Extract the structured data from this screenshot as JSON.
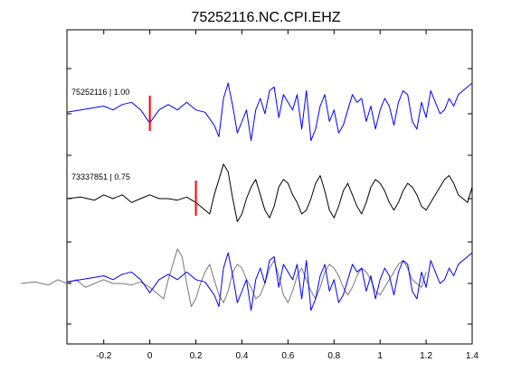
{
  "title": "75252116.NC.CPI.EHZ",
  "chart_data": {
    "type": "line",
    "title": "75252116.NC.CPI.EHZ",
    "xlabel": "",
    "ylabel": "",
    "xlim": [
      -0.36,
      1.4
    ],
    "x_ticks": [
      "-0.2",
      "0",
      "0.2",
      "0.4",
      "0.6",
      "0.8",
      "1",
      "1.2",
      "1.4"
    ],
    "x_tick_values": [
      -0.2,
      0,
      0.2,
      0.4,
      0.6,
      0.8,
      1.0,
      1.2,
      1.4
    ],
    "grid": false,
    "legend": "none",
    "traces": [
      {
        "label": "75252116 | 1.00",
        "color": "#0000ff",
        "pick_time": 0.0,
        "pick_color": "#ff0000",
        "x": [
          -0.36,
          -0.3,
          -0.24,
          -0.2,
          -0.16,
          -0.12,
          -0.08,
          -0.04,
          0,
          0.04,
          0.08,
          0.12,
          0.16,
          0.2,
          0.24,
          0.28,
          0.3,
          0.32,
          0.34,
          0.36,
          0.38,
          0.4,
          0.42,
          0.44,
          0.46,
          0.48,
          0.5,
          0.52,
          0.54,
          0.56,
          0.58,
          0.6,
          0.62,
          0.64,
          0.66,
          0.68,
          0.7,
          0.72,
          0.74,
          0.76,
          0.78,
          0.8,
          0.82,
          0.84,
          0.86,
          0.88,
          0.9,
          0.92,
          0.94,
          0.96,
          0.98,
          1.0,
          1.02,
          1.04,
          1.06,
          1.08,
          1.1,
          1.12,
          1.14,
          1.16,
          1.18,
          1.2,
          1.22,
          1.24,
          1.26,
          1.28,
          1.3,
          1.32,
          1.34,
          1.36,
          1.38,
          1.4
        ],
        "y": [
          0.02,
          0.05,
          0.08,
          0.1,
          0.05,
          0.12,
          0.15,
          0.05,
          -0.12,
          0.05,
          0.12,
          0.05,
          0.15,
          0.05,
          0.02,
          -0.15,
          -0.3,
          0.2,
          0.4,
          0.1,
          -0.25,
          -0.1,
          0.05,
          -0.35,
          0.05,
          0.2,
          0.0,
          0.3,
          0.35,
          -0.05,
          0.25,
          0.15,
          0.05,
          0.25,
          -0.2,
          0.3,
          -0.35,
          -0.2,
          0.1,
          0.25,
          -0.1,
          0.05,
          -0.25,
          -0.15,
          0.05,
          0.25,
          0.15,
          0.2,
          -0.1,
          0.1,
          -0.2,
          0.05,
          0.2,
          0.1,
          -0.15,
          0.15,
          0.3,
          0.25,
          -0.1,
          -0.2,
          0.15,
          -0.05,
          0.3,
          0.15,
          0.0,
          0.05,
          0.2,
          0.1,
          0.25,
          0.3,
          0.35,
          0.4
        ]
      },
      {
        "label": "73337851 | 0.75",
        "color": "#000000",
        "pick_time": 0.2,
        "pick_color": "#ff0000",
        "x": [
          -0.36,
          -0.3,
          -0.24,
          -0.2,
          -0.16,
          -0.12,
          -0.08,
          -0.04,
          0,
          0.04,
          0.08,
          0.12,
          0.16,
          0.2,
          0.24,
          0.26,
          0.28,
          0.3,
          0.32,
          0.34,
          0.36,
          0.38,
          0.4,
          0.42,
          0.44,
          0.46,
          0.48,
          0.5,
          0.52,
          0.54,
          0.56,
          0.58,
          0.6,
          0.62,
          0.64,
          0.66,
          0.68,
          0.7,
          0.72,
          0.74,
          0.76,
          0.78,
          0.8,
          0.82,
          0.84,
          0.86,
          0.88,
          0.9,
          0.92,
          0.94,
          0.96,
          0.98,
          1.0,
          1.02,
          1.04,
          1.06,
          1.08,
          1.1,
          1.12,
          1.14,
          1.16,
          1.18,
          1.2,
          1.22,
          1.24,
          1.26,
          1.28,
          1.3,
          1.32,
          1.34,
          1.36,
          1.38,
          1.4
        ],
        "y": [
          0.0,
          0.02,
          -0.02,
          0.05,
          0.0,
          0.05,
          -0.05,
          0.0,
          0.05,
          0.0,
          0.0,
          -0.02,
          0.02,
          -0.05,
          -0.15,
          -0.2,
          0.05,
          0.25,
          0.45,
          0.35,
          0.0,
          -0.3,
          -0.2,
          0.0,
          0.15,
          0.25,
          0.05,
          -0.15,
          -0.25,
          -0.1,
          0.15,
          0.25,
          0.2,
          0.05,
          -0.05,
          -0.2,
          -0.15,
          0.0,
          0.2,
          0.3,
          0.1,
          -0.15,
          -0.25,
          -0.1,
          0.1,
          0.2,
          0.05,
          -0.1,
          -0.2,
          -0.05,
          0.15,
          0.25,
          0.2,
          0.1,
          -0.05,
          -0.15,
          -0.05,
          0.1,
          0.2,
          0.15,
          0.05,
          -0.1,
          -0.15,
          -0.05,
          0.05,
          0.15,
          0.25,
          0.3,
          0.2,
          0.05,
          0.0,
          -0.05,
          0.15
        ]
      }
    ]
  }
}
